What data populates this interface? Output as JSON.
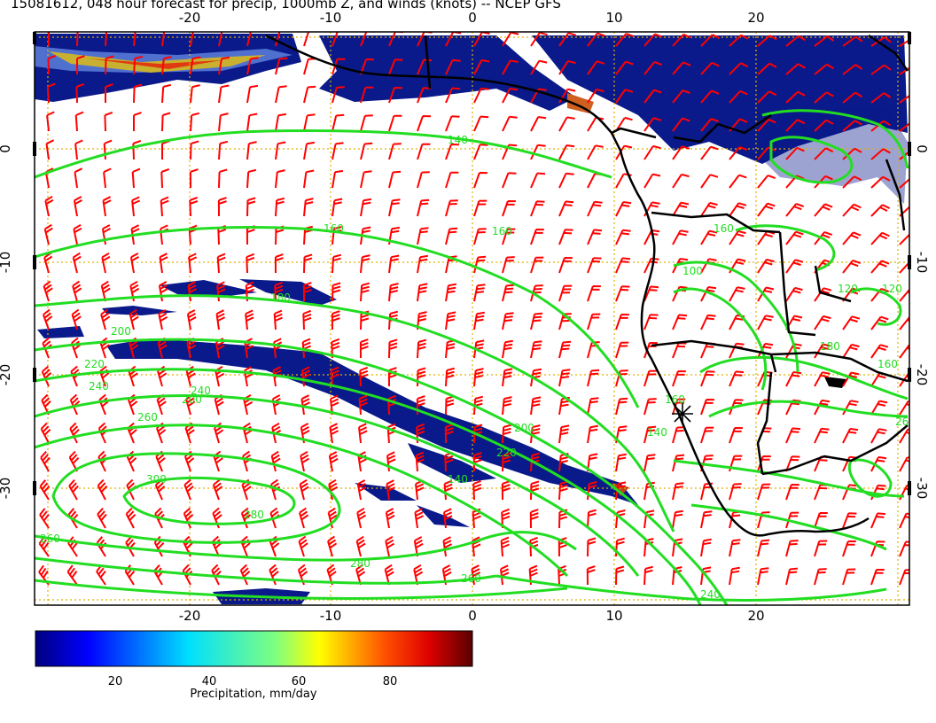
{
  "title": "15081612, 048 hour forecast for precip, 1000mb Z, and winds (knots) -- NCEP GFS",
  "map": {
    "lon_ticks_top": [
      "-20",
      "-10",
      "0",
      "10",
      "20"
    ],
    "lon_ticks_bottom": [
      "-20",
      "-10",
      "0",
      "10",
      "20"
    ],
    "lat_ticks_left": [
      "0",
      "-10",
      "-20",
      "-30"
    ],
    "lat_ticks_right": [
      "0",
      "-10",
      "-20",
      "-30"
    ],
    "lon_range": [
      -30,
      30
    ],
    "lat_range": [
      -40,
      10
    ],
    "contour_labels": [
      "140",
      "160",
      "160",
      "160",
      "180",
      "180",
      "200",
      "200",
      "200",
      "220",
      "220",
      "240",
      "240",
      "260",
      "260",
      "260",
      "280",
      "280",
      "300",
      "100",
      "120",
      "120",
      "140",
      "140",
      "160",
      "160",
      "240",
      "260"
    ],
    "colors": {
      "wind_barbs": "#ff0000",
      "contours": "#22dd22",
      "coastline": "#000000",
      "gridlines": "#e0b000"
    }
  },
  "colorbar": {
    "ticks": [
      "20",
      "40",
      "60",
      "80"
    ],
    "label": "Precipitation, mm/day",
    "colormap": "jet"
  }
}
